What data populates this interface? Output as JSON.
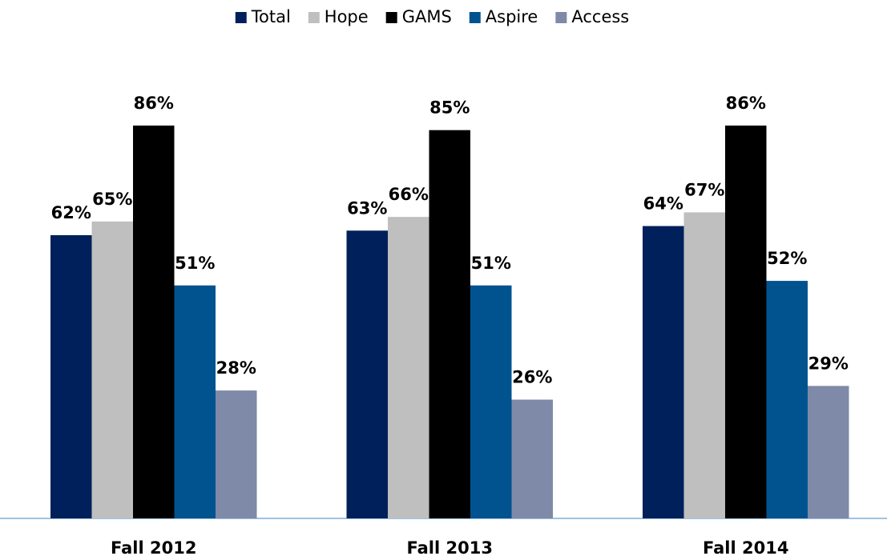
{
  "chart_data": {
    "type": "bar",
    "categories": [
      "Fall 2012",
      "Fall 2013",
      "Fall 2014"
    ],
    "series": [
      {
        "name": "Total",
        "color": "#00205b",
        "values": [
          62,
          63,
          64
        ],
        "value_labels": [
          "62%",
          "63%",
          "64%"
        ]
      },
      {
        "name": "Hope",
        "color": "#bfbfbf",
        "values": [
          65,
          66,
          67
        ],
        "value_labels": [
          "65%",
          "66%",
          "67%"
        ]
      },
      {
        "name": "GAMS",
        "color": "#000000",
        "values": [
          86,
          85,
          86
        ],
        "value_labels": [
          "86%",
          "85%",
          "86%"
        ]
      },
      {
        "name": "Aspire",
        "color": "#00538f",
        "values": [
          51,
          51,
          52
        ],
        "value_labels": [
          "51%",
          "51%",
          "52%"
        ]
      },
      {
        "name": "Access",
        "color": "#7f89a8",
        "values": [
          28,
          26,
          29
        ],
        "value_labels": [
          "28%",
          "26%",
          "29%"
        ]
      }
    ],
    "legend": "top"
  }
}
